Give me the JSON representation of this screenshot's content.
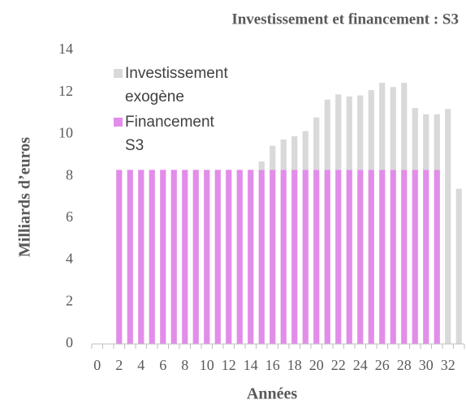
{
  "chart_data": {
    "type": "bar",
    "stacked": true,
    "title": "Investissement et financement : S3",
    "xlabel": "Années",
    "ylabel": "Milliards d’euros",
    "categories": [
      "0",
      null,
      "2",
      null,
      "4",
      null,
      "6",
      null,
      "8",
      null,
      "10",
      null,
      "12",
      null,
      "14",
      null,
      "16",
      null,
      "18",
      null,
      "20",
      null,
      "22",
      null,
      "24",
      null,
      "26",
      null,
      "28",
      null,
      "30",
      null,
      "32",
      null
    ],
    "series": [
      {
        "name": "Financement S3",
        "color": "#e28de9",
        "values": [
          0,
          0,
          8.3,
          8.3,
          8.3,
          8.3,
          8.3,
          8.3,
          8.3,
          8.3,
          8.3,
          8.3,
          8.3,
          8.3,
          8.3,
          8.3,
          8.3,
          8.3,
          8.3,
          8.3,
          8.3,
          8.3,
          8.3,
          8.3,
          8.3,
          8.3,
          8.3,
          8.3,
          8.3,
          8.3,
          8.3,
          8.3,
          0,
          0
        ]
      },
      {
        "name": "Investissement exogène",
        "color": "#d9d9d9",
        "values": [
          0,
          0,
          0,
          0,
          0,
          0,
          0,
          0,
          0,
          0,
          0,
          0,
          0,
          0,
          0,
          0.4,
          1.15,
          1.45,
          1.6,
          1.85,
          2.5,
          3.35,
          3.6,
          3.5,
          3.55,
          3.8,
          4.15,
          3.95,
          4.15,
          2.95,
          2.65,
          2.65,
          11.2,
          7.4
        ]
      }
    ],
    "legend_order": [
      1,
      0
    ],
    "ylim": [
      0,
      14
    ],
    "yticks": [
      0,
      2,
      4,
      6,
      8,
      10,
      12,
      14
    ],
    "grid": false
  }
}
